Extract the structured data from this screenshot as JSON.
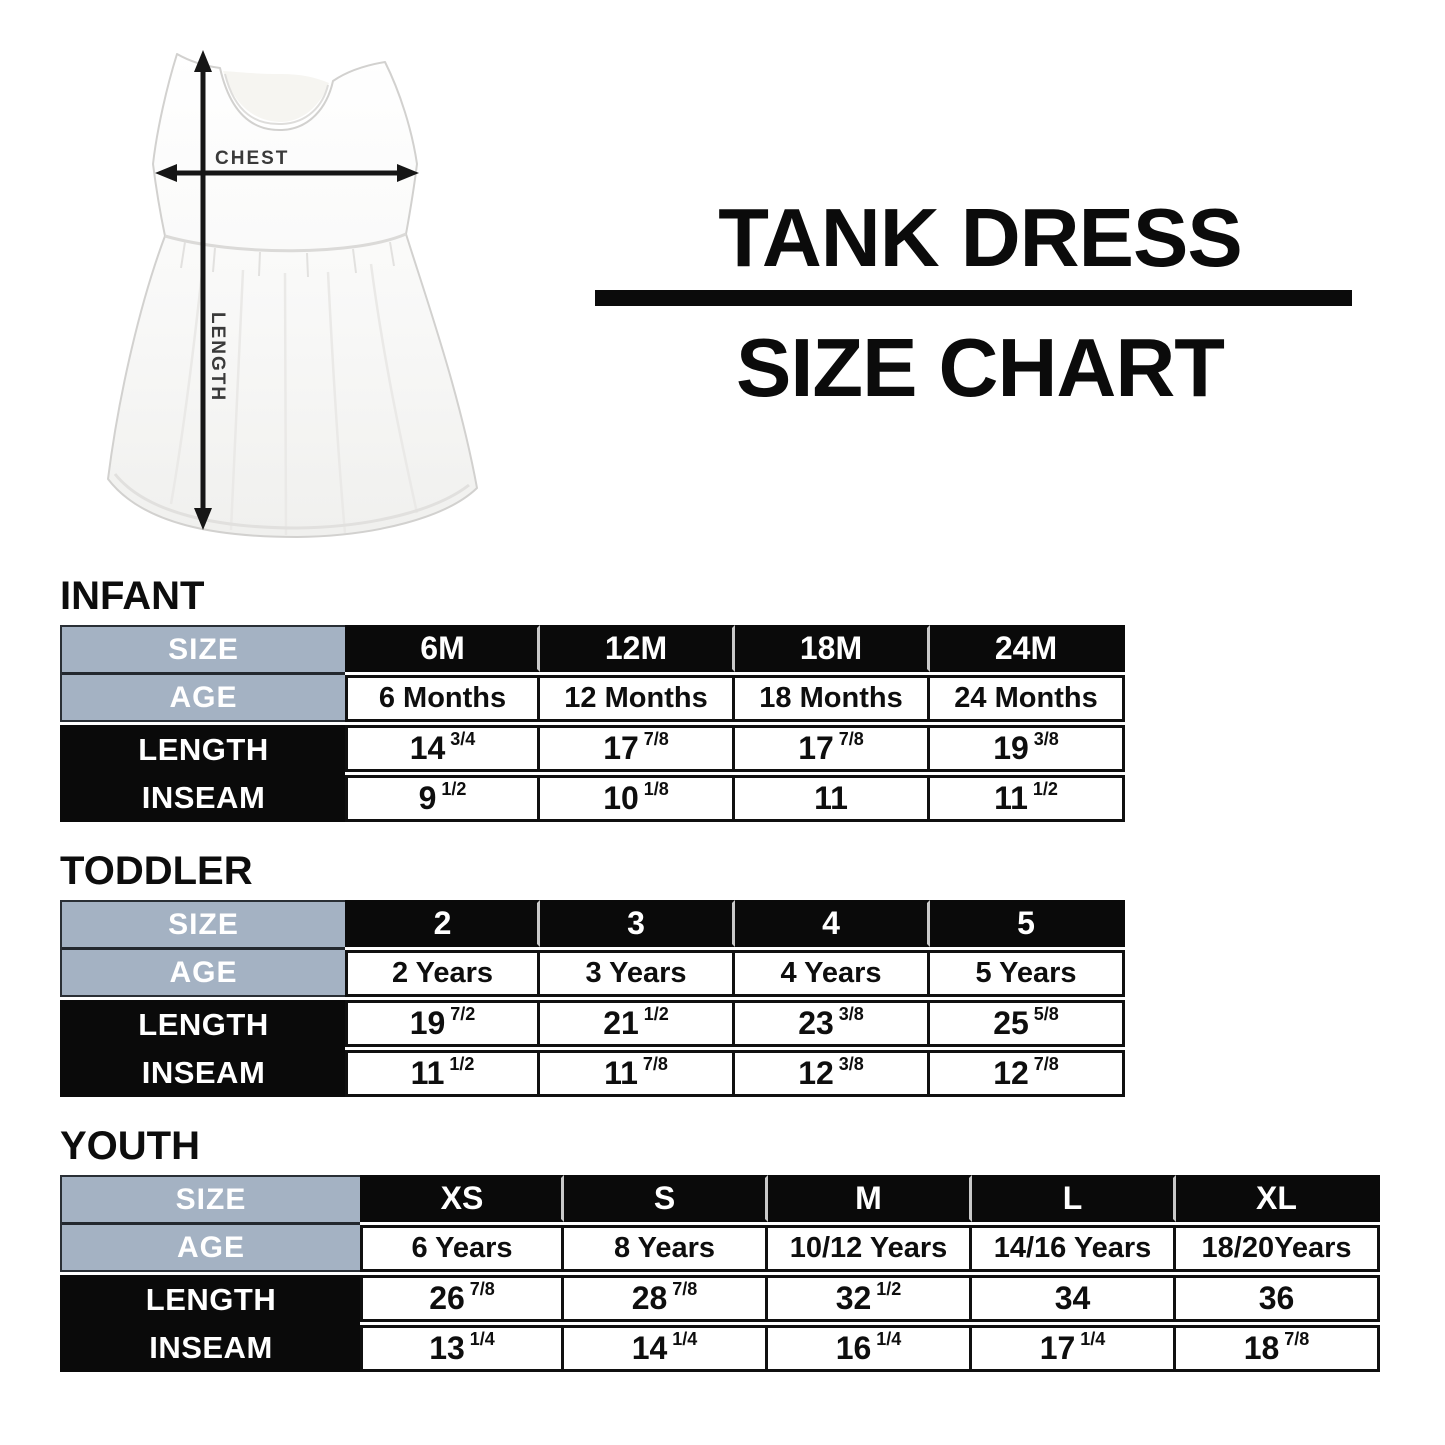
{
  "title": {
    "line1": "TANK DRESS",
    "line2": "SIZE CHART"
  },
  "diagram": {
    "chest_label": "CHEST",
    "length_label": "LENGTH"
  },
  "colors": {
    "background": "#ffffff",
    "title_text": "#0b0b0b",
    "label_header_bg": "#a4b2c3",
    "black_bar_bg": "#0a0a0a",
    "table_border": "#101010",
    "header_divider": "#c9c9c9",
    "cell_text": "#0e0e0e",
    "label_text": "#ffffff"
  },
  "tables": [
    {
      "section_title": "INFANT",
      "row_labels": [
        "SIZE",
        "AGE",
        "LENGTH",
        "INSEAM"
      ],
      "columns": [
        {
          "size": "6M",
          "age": "6 Months",
          "length": "14 3/4",
          "inseam": "9 1/2"
        },
        {
          "size": "12M",
          "age": "12 Months",
          "length": "17 7/8",
          "inseam": "10 1/8"
        },
        {
          "size": "18M",
          "age": "18 Months",
          "length": "17 7/8",
          "inseam": "11"
        },
        {
          "size": "24M",
          "age": "24 Months",
          "length": "19 3/8",
          "inseam": "11 1/2"
        }
      ]
    },
    {
      "section_title": "TODDLER",
      "row_labels": [
        "SIZE",
        "AGE",
        "LENGTH",
        "INSEAM"
      ],
      "columns": [
        {
          "size": "2",
          "age": "2 Years",
          "length": "19 7/2",
          "inseam": "11 1/2"
        },
        {
          "size": "3",
          "age": "3 Years",
          "length": "21 1/2",
          "inseam": "11 7/8"
        },
        {
          "size": "4",
          "age": "4 Years",
          "length": "23 3/8",
          "inseam": "12 3/8"
        },
        {
          "size": "5",
          "age": "5 Years",
          "length": "25 5/8",
          "inseam": "12 7/8"
        }
      ]
    },
    {
      "section_title": "YOUTH",
      "row_labels": [
        "SIZE",
        "AGE",
        "LENGTH",
        "INSEAM"
      ],
      "columns": [
        {
          "size": "XS",
          "age": "6 Years",
          "length": "26 7/8",
          "inseam": "13 1/4"
        },
        {
          "size": "S",
          "age": "8 Years",
          "length": "28 7/8",
          "inseam": "14 1/4"
        },
        {
          "size": "M",
          "age": "10/12 Years",
          "length": "32 1/2",
          "inseam": "16 1/4"
        },
        {
          "size": "L",
          "age": "14/16 Years",
          "length": "34",
          "inseam": "17 1/4"
        },
        {
          "size": "XL",
          "age": "18/20Years",
          "length": "36",
          "inseam": "18 7/8"
        }
      ]
    }
  ]
}
